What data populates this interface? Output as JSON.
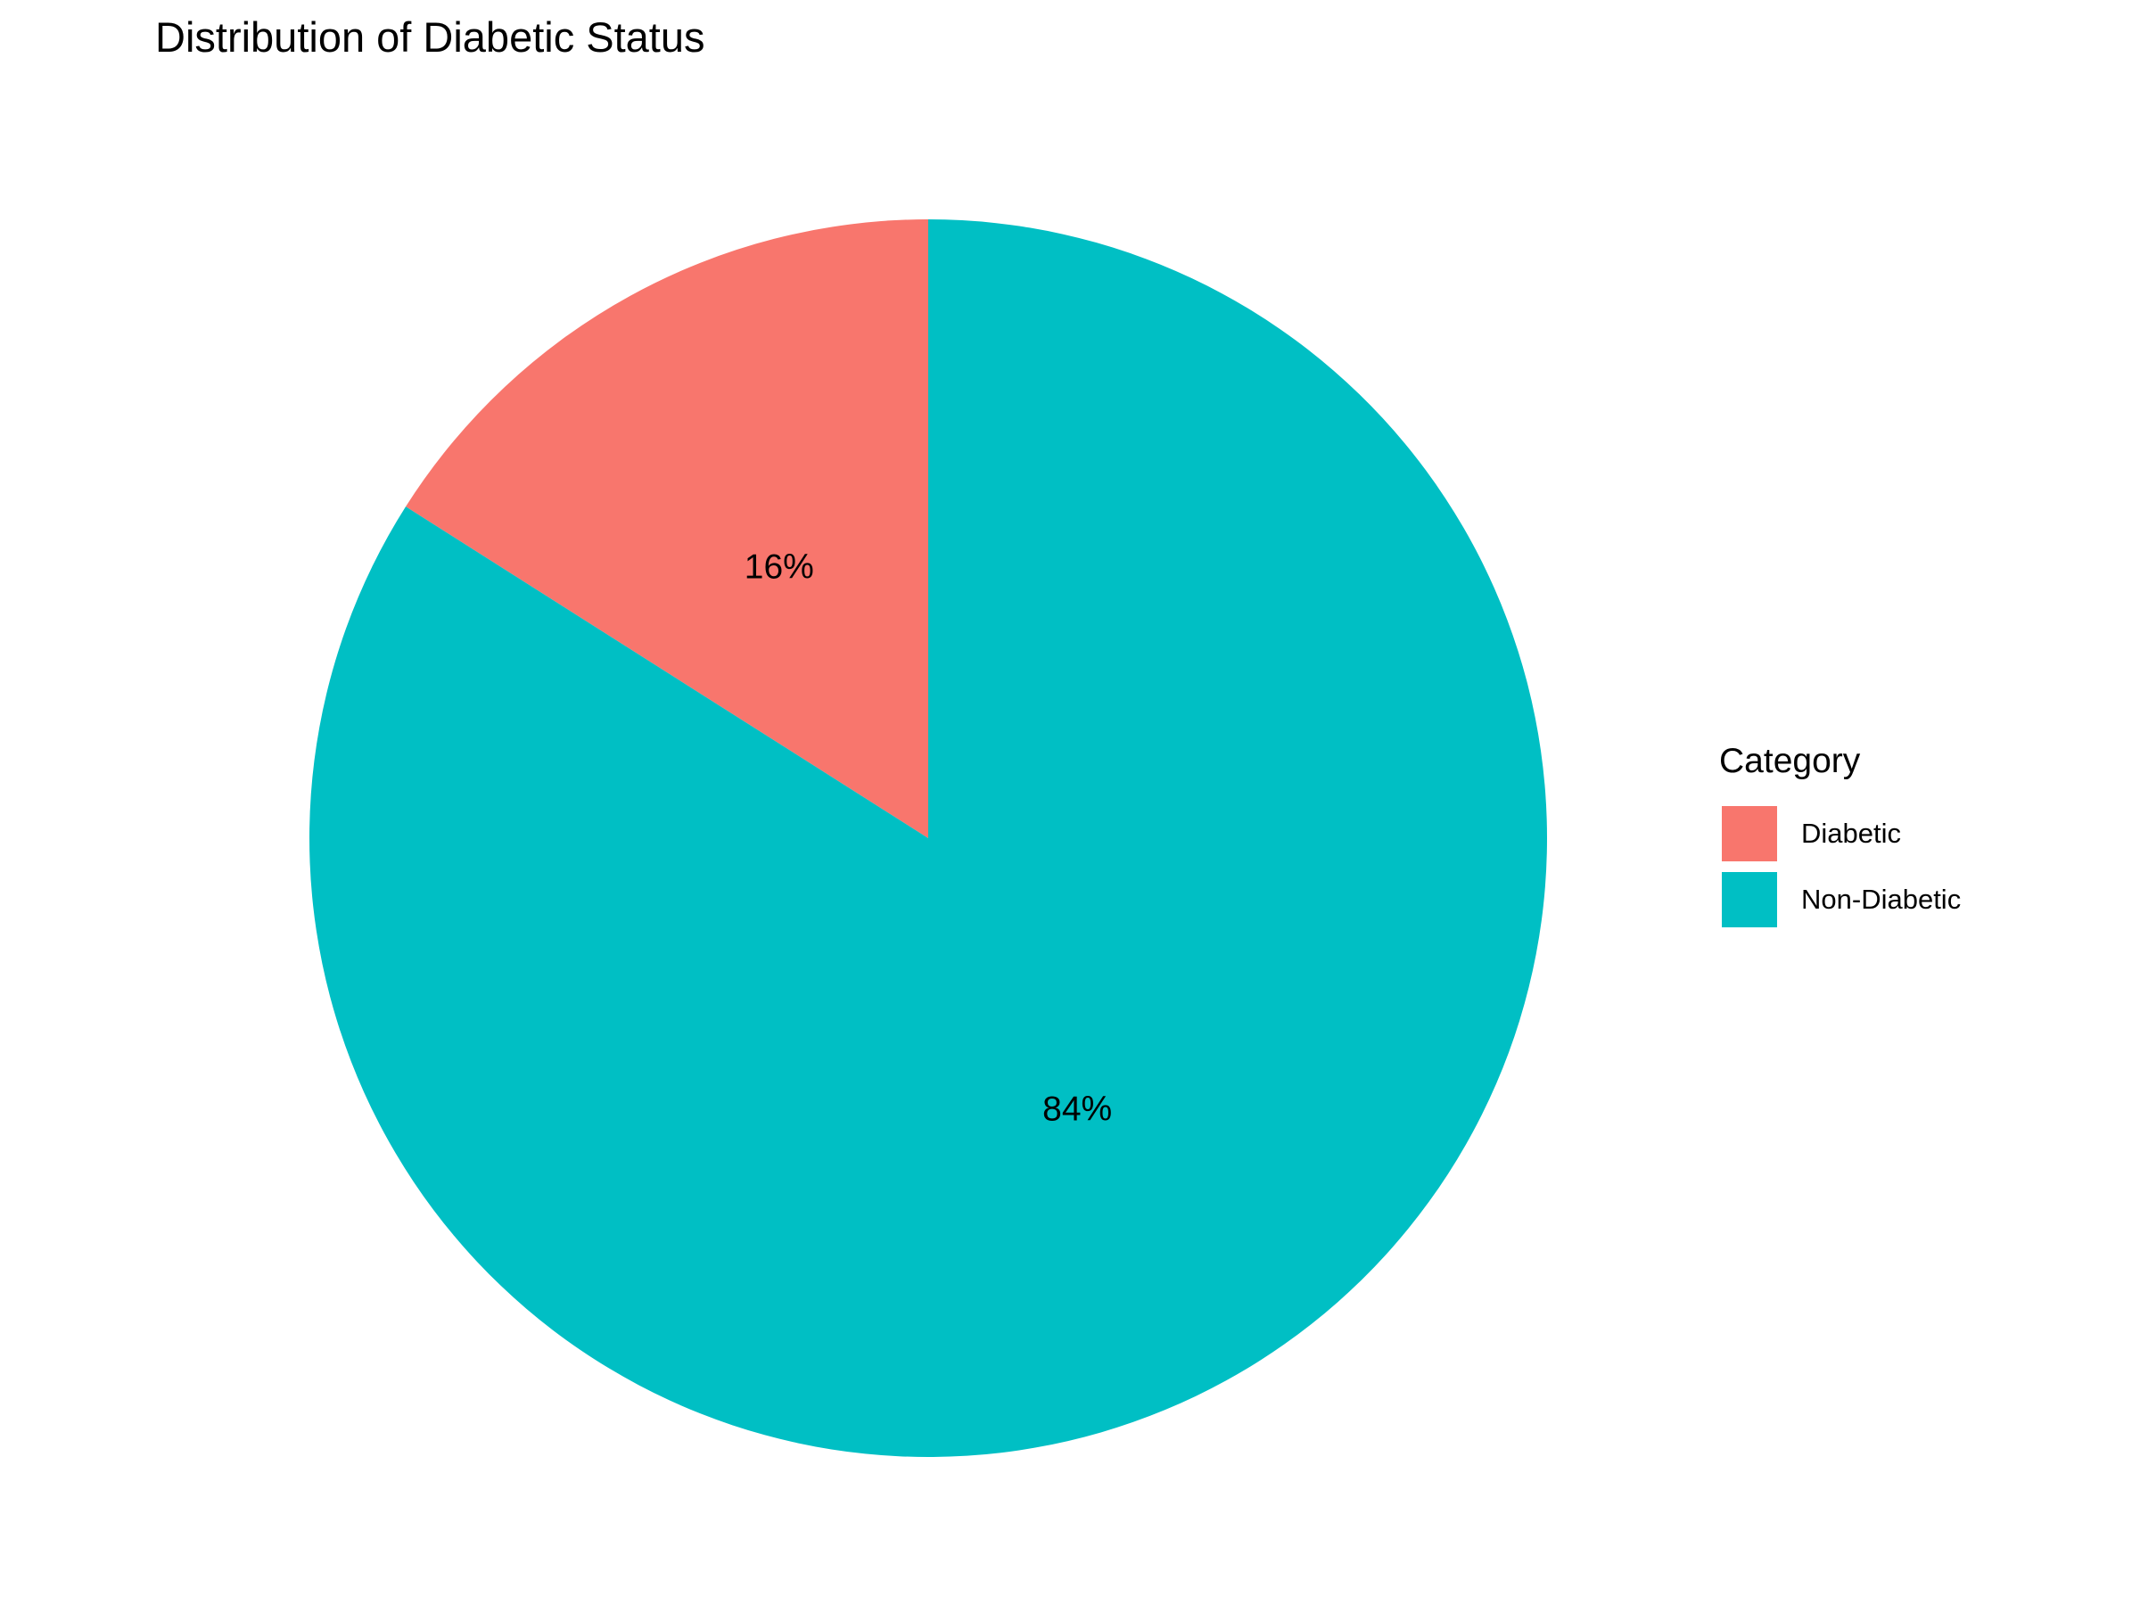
{
  "chart_data": {
    "type": "pie",
    "title": "Distribution of Diabetic Status",
    "legend_title": "Category",
    "legend_position": "right",
    "categories": [
      "Diabetic",
      "Non-Diabetic"
    ],
    "values": [
      16,
      84
    ],
    "labels": [
      "16%",
      "84%"
    ],
    "colors": [
      "#F8766D",
      "#00BFC4"
    ],
    "start": "12 o'clock",
    "direction": "counterclockwise"
  }
}
